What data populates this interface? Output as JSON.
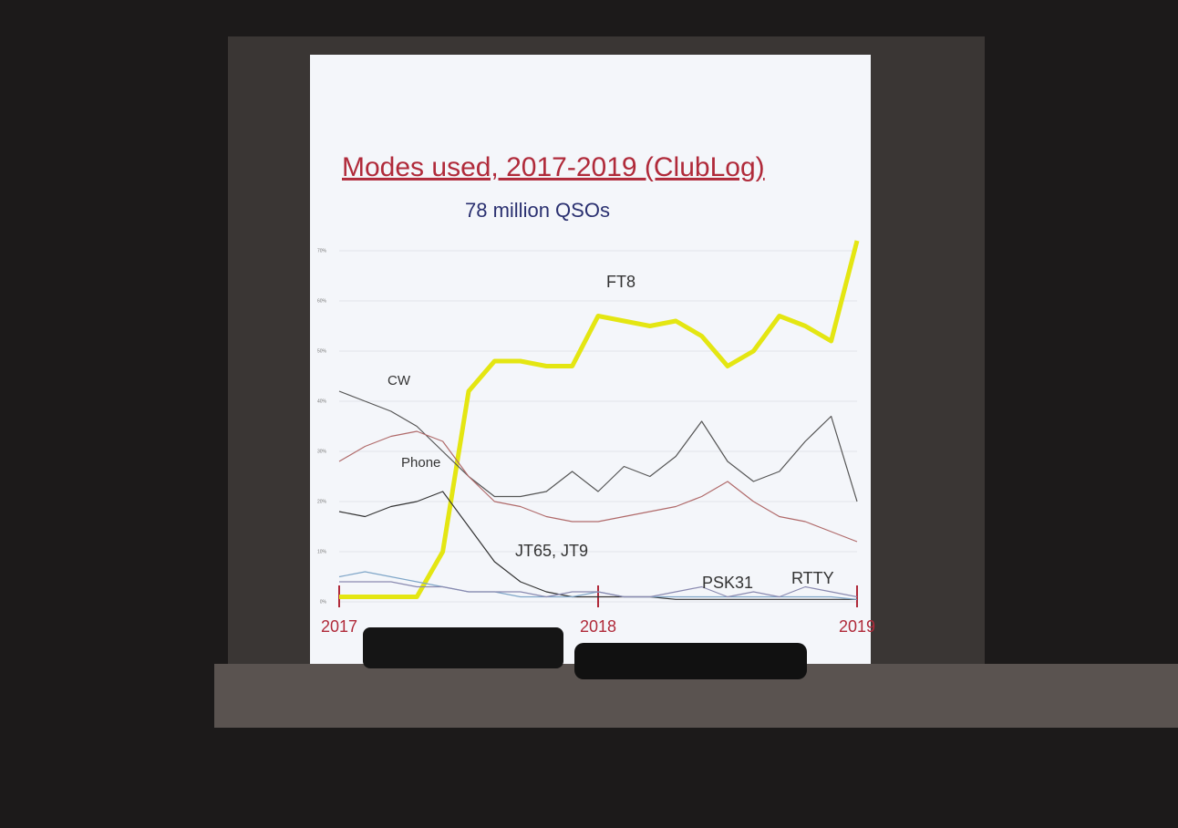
{
  "chart_data": {
    "type": "line",
    "title": "Modes used, 2017-2019  (ClubLog)",
    "subtitle": "78 million QSOs",
    "x": [
      2017.0,
      2017.1,
      2017.2,
      2017.3,
      2017.4,
      2017.5,
      2017.6,
      2017.7,
      2017.8,
      2017.9,
      2018.0,
      2018.1,
      2018.2,
      2018.3,
      2018.4,
      2018.5,
      2018.6,
      2018.7,
      2018.8,
      2018.9,
      2019.0
    ],
    "xlim": [
      2017,
      2019
    ],
    "xticks": [
      2017,
      2018,
      2019
    ],
    "ylim": [
      0,
      70
    ],
    "yticks": [
      {
        "value": 0,
        "label": "0%"
      },
      {
        "value": 10,
        "label": "10%"
      },
      {
        "value": 20,
        "label": "20%"
      },
      {
        "value": 30,
        "label": "30%"
      },
      {
        "value": 40,
        "label": "40%"
      },
      {
        "value": 50,
        "label": "50%"
      },
      {
        "value": 60,
        "label": "60%"
      },
      {
        "value": 70,
        "label": "70%"
      }
    ],
    "grid": true,
    "series": [
      {
        "name": "FT8",
        "color": "#e4e612",
        "values": [
          1,
          1,
          1,
          1,
          10,
          42,
          48,
          48,
          47,
          47,
          57,
          56,
          55,
          56,
          53,
          47,
          50,
          57,
          55,
          52,
          72
        ]
      },
      {
        "name": "CW",
        "color": "#555555",
        "values": [
          42,
          40,
          38,
          35,
          30,
          25,
          21,
          21,
          22,
          26,
          22,
          27,
          25,
          29,
          36,
          28,
          24,
          26,
          32,
          37,
          20
        ]
      },
      {
        "name": "Phone",
        "color": "#b06a6a",
        "values": [
          28,
          31,
          33,
          34,
          32,
          25,
          20,
          19,
          17,
          16,
          16,
          17,
          18,
          19,
          21,
          24,
          20,
          17,
          16,
          14,
          12
        ]
      },
      {
        "name": "JT65, JT9",
        "color": "#333333",
        "values": [
          18,
          17,
          19,
          20,
          22,
          15,
          8,
          4,
          2,
          1,
          1,
          1,
          1,
          0.5,
          0.5,
          0.5,
          0.5,
          0.5,
          0.5,
          0.5,
          0.5
        ]
      },
      {
        "name": "PSK31",
        "color": "#7fa6c8",
        "values": [
          5,
          6,
          5,
          4,
          3,
          2,
          2,
          1,
          1,
          1,
          2,
          1,
          1,
          1,
          1,
          1,
          1,
          1,
          1,
          1,
          0.5
        ]
      },
      {
        "name": "RTTY",
        "color": "#8a8ab0",
        "values": [
          4,
          4,
          4,
          3,
          3,
          2,
          2,
          2,
          1,
          2,
          2,
          1,
          1,
          2,
          3,
          1,
          2,
          1,
          3,
          2,
          1
        ]
      }
    ]
  }
}
